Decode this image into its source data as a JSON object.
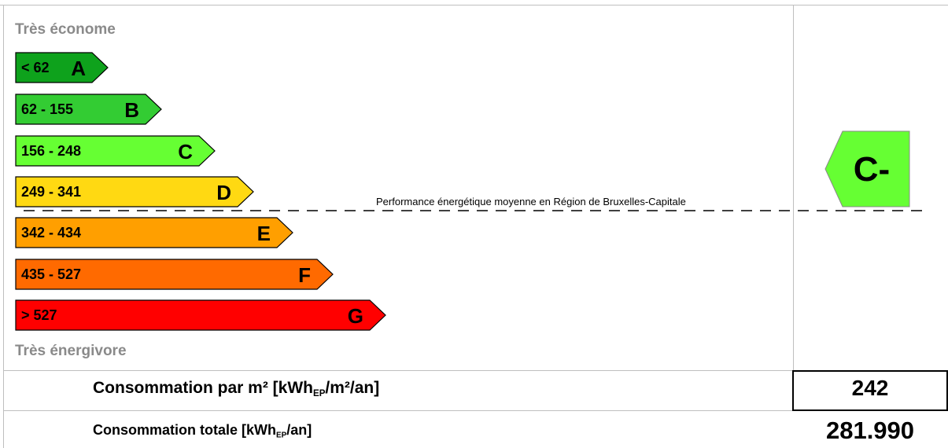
{
  "header_top": "Très économe",
  "header_bottom": "Très énergivore",
  "average_line_label": "Performance énergétique moyenne en Région de Bruxelles-Capitale",
  "rating": {
    "label": "C-",
    "color": "#66ff33"
  },
  "chart_data": {
    "type": "energy-rating",
    "classes": [
      {
        "range": "< 62",
        "letter": "A",
        "color": "#0ea21c"
      },
      {
        "range": "62 - 155",
        "letter": "B",
        "color": "#33cc33"
      },
      {
        "range": "156 - 248",
        "letter": "C",
        "color": "#66ff33"
      },
      {
        "range": "249 - 341",
        "letter": "D",
        "color": "#ffd912"
      },
      {
        "range": "342 - 434",
        "letter": "E",
        "color": "#ff9f00"
      },
      {
        "range": "435 - 527",
        "letter": "F",
        "color": "#ff6a00"
      },
      {
        "range": "> 527",
        "letter": "G",
        "color": "#ff0000"
      }
    ],
    "average_between": [
      "D",
      "E"
    ],
    "rating": "C-"
  },
  "consumption": {
    "per_m2_label": "Consommation par m² [kWh",
    "per_m2_sub": "EP",
    "per_m2_suffix": "/m²/an]",
    "per_m2_value": "242",
    "total_label": "Consommation totale [kWh",
    "total_sub": "EP",
    "total_suffix": "/an]",
    "total_value": "281.990"
  }
}
